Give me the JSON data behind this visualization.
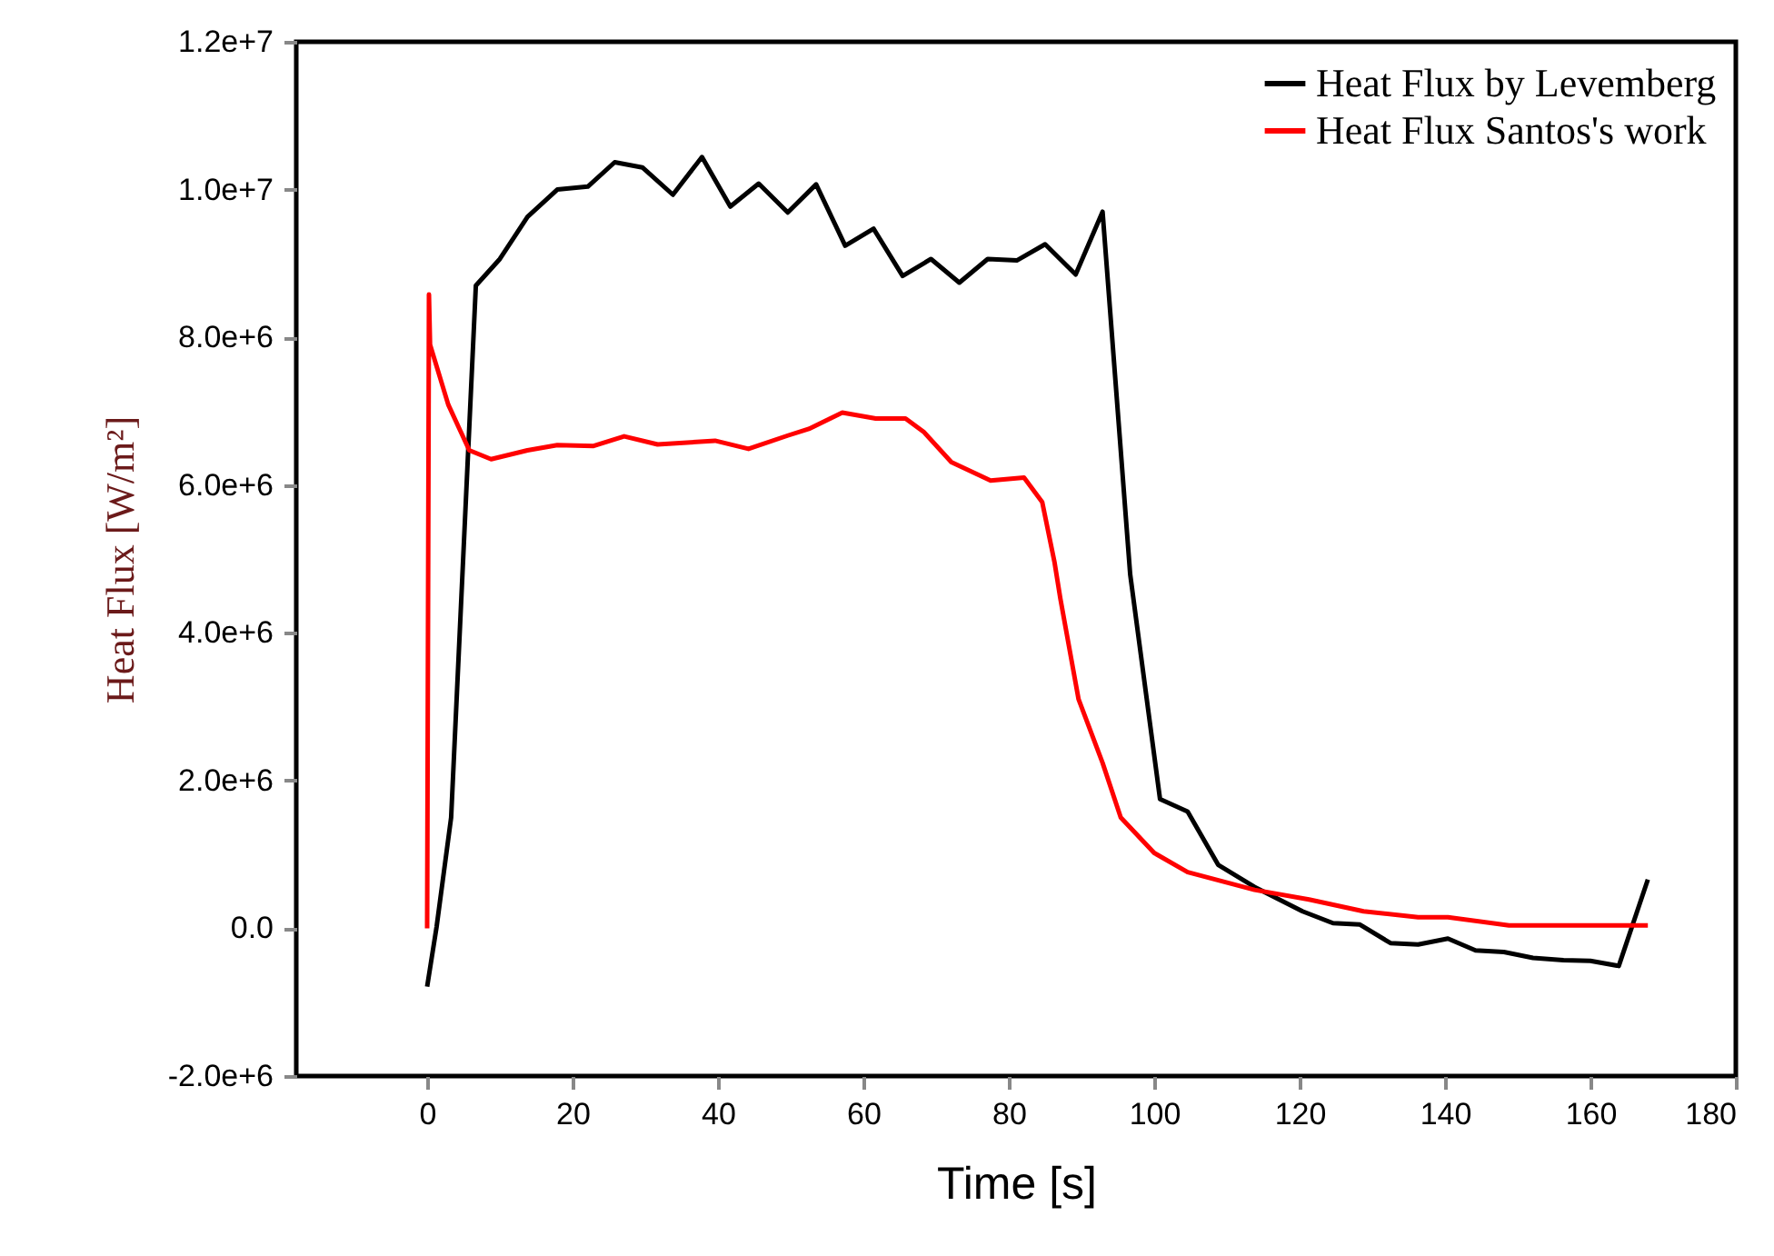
{
  "chart_data": {
    "type": "line",
    "xlabel": "Time [s]",
    "ylabel": "Heat Flux [W/m²]",
    "xlim": [
      -18,
      180
    ],
    "xticks": [
      0,
      20,
      40,
      60,
      80,
      100,
      120,
      140,
      160,
      180
    ],
    "ylim": [
      -2000000,
      12000000
    ],
    "yticks": [
      {
        "value": -2000000,
        "label": "-2.0e+6"
      },
      {
        "value": 0,
        "label": "0.0"
      },
      {
        "value": 2000000,
        "label": "2.0e+6"
      },
      {
        "value": 4000000,
        "label": "4.0e+6"
      },
      {
        "value": 6000000,
        "label": "6.0e+6"
      },
      {
        "value": 8000000,
        "label": "8.0e+6"
      },
      {
        "value": 10000000,
        "label": "1.0e+7"
      },
      {
        "value": 12000000,
        "label": "1.2e+7"
      }
    ],
    "grid": false,
    "legend": "top right",
    "line_style": "solid",
    "marker": "none",
    "series": [
      {
        "name": "Heat Flux by Levemberg",
        "color": "#000000",
        "x": [
          0,
          1.3,
          3.3,
          6.7,
          10,
          13.8,
          17.9,
          22.1,
          25.8,
          29.6,
          33.8,
          37.8,
          41.7,
          45.6,
          49.6,
          53.5,
          57.5,
          61.4,
          65.4,
          69.3,
          73.2,
          77.1,
          81.1,
          85,
          89.2,
          92.9,
          96.7,
          100.8,
          104.6,
          108.8,
          113.8,
          120.4,
          124.6,
          128.3,
          132.5,
          136.3,
          140.4,
          144.2,
          148.1,
          152.1,
          156.3,
          160,
          163.9,
          167.9
        ],
        "values": [
          -790000,
          20000,
          1500000,
          8700000,
          9060000,
          9630000,
          10000000,
          10040000,
          10370000,
          10300000,
          9930000,
          10440000,
          9770000,
          10080000,
          9690000,
          10070000,
          9240000,
          9470000,
          8830000,
          9060000,
          8740000,
          9060000,
          9040000,
          9260000,
          8850000,
          9700000,
          4790000,
          1750000,
          1580000,
          860000,
          560000,
          230000,
          70000,
          50000,
          -200000,
          -220000,
          -140000,
          -300000,
          -320000,
          -400000,
          -430000,
          -440000,
          -510000,
          660000
        ]
      },
      {
        "name": "Heat Flux Santos's work",
        "color": "#ff0000",
        "x": [
          0,
          0.25,
          0.4,
          2.9,
          5.8,
          8.8,
          13.8,
          17.9,
          22.9,
          27.1,
          31.7,
          39.6,
          44.2,
          49.6,
          52.5,
          57.1,
          61.7,
          65.8,
          68.3,
          72.1,
          77.5,
          82.1,
          84.6,
          86.3,
          87.1,
          89.6,
          92.9,
          95.4,
          100,
          104.6,
          113.8,
          121.3,
          128.8,
          136.3,
          140.4,
          148.8,
          167.9
        ],
        "values": [
          0,
          8580000,
          7900000,
          7090000,
          6470000,
          6350000,
          6470000,
          6540000,
          6530000,
          6660000,
          6550000,
          6600000,
          6490000,
          6670000,
          6760000,
          6980000,
          6900000,
          6900000,
          6720000,
          6310000,
          6060000,
          6100000,
          5770000,
          4950000,
          4460000,
          3100000,
          2240000,
          1500000,
          1020000,
          760000,
          520000,
          390000,
          230000,
          150000,
          150000,
          40000,
          40000
        ]
      }
    ]
  }
}
